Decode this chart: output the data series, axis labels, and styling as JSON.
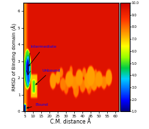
{
  "title": "",
  "xlabel": "C.M. distance Å",
  "ylabel": "RMSD of Binding domain (Å)",
  "xlim": [
    4,
    62
  ],
  "ylim": [
    0,
    6.5
  ],
  "xticks": [
    5,
    10,
    15,
    20,
    25,
    30,
    35,
    40,
    45,
    50,
    55,
    60
  ],
  "yticks": [
    0,
    1,
    2,
    3,
    4,
    5,
    6
  ],
  "colorbar_labels": [
    "1.0",
    "2.0",
    "3.0",
    "4.0",
    "5.0",
    "6.0",
    "7.0",
    "8.0",
    "9.0",
    "10.0"
  ],
  "figsize": [
    2.17,
    1.89
  ],
  "dpi": 100
}
